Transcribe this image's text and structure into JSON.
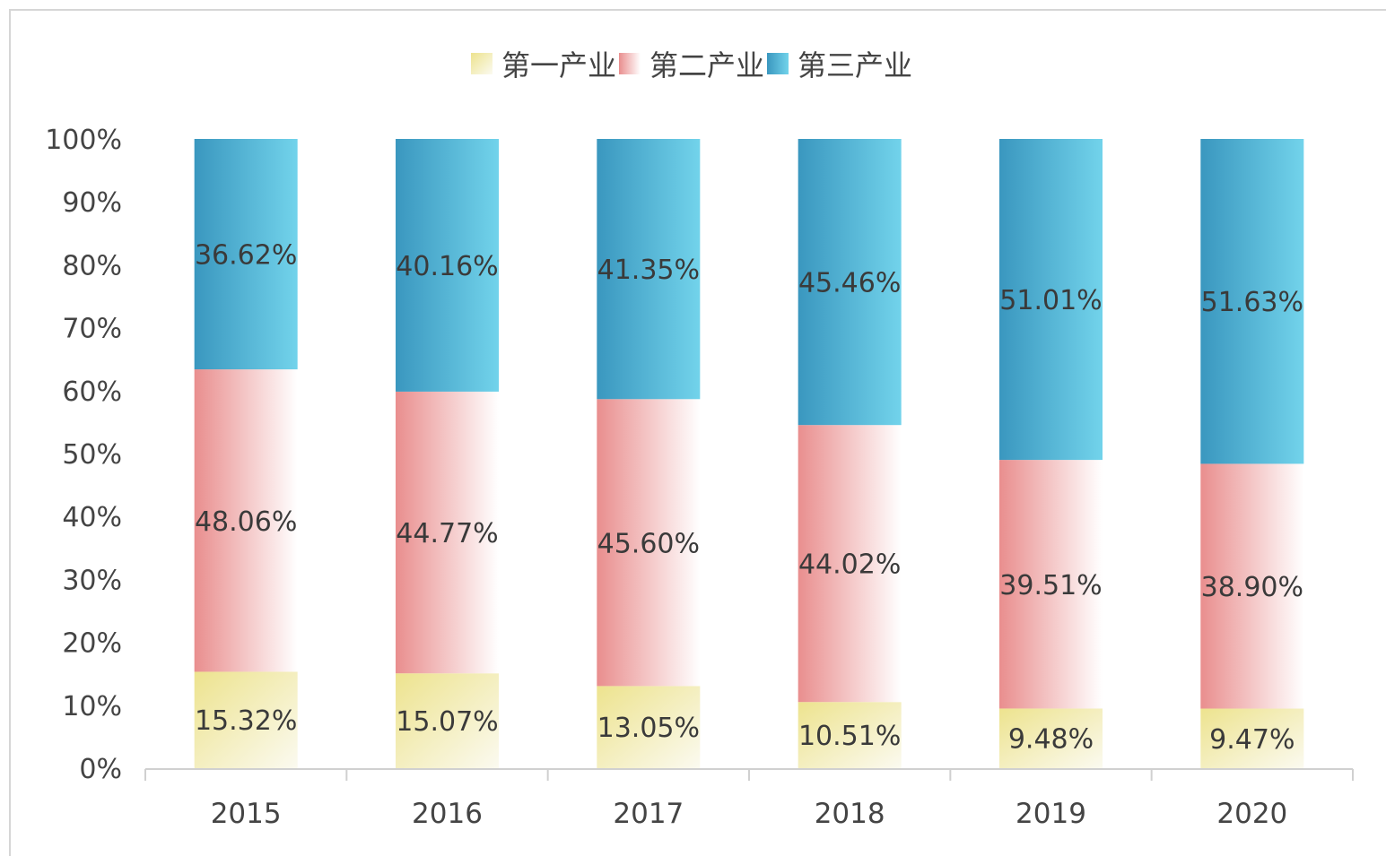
{
  "chart_data": {
    "type": "bar",
    "stacked": true,
    "percent_stacked": true,
    "categories": [
      "2015",
      "2016",
      "2017",
      "2018",
      "2019",
      "2020"
    ],
    "series": [
      {
        "name": "第一产业",
        "values": [
          15.32,
          15.07,
          13.05,
          10.51,
          9.48,
          9.47
        ],
        "labels": [
          "15.32%",
          "15.07%",
          "13.05%",
          "10.51%",
          "9.48%",
          "9.47%"
        ],
        "color": "#EDE38E",
        "color_light": "#FBFAF0"
      },
      {
        "name": "第二产业",
        "values": [
          48.06,
          44.77,
          45.6,
          44.02,
          39.51,
          38.9
        ],
        "labels": [
          "48.06%",
          "44.77%",
          "45.60%",
          "44.02%",
          "39.51%",
          "38.90%"
        ],
        "color": "#E98E8E",
        "color_light": "#FFFFFF"
      },
      {
        "name": "第三产业",
        "values": [
          36.62,
          40.16,
          41.35,
          45.46,
          51.01,
          51.63
        ],
        "labels": [
          "36.62%",
          "40.16%",
          "41.35%",
          "45.46%",
          "51.01%",
          "51.63%"
        ],
        "color": "#3A97BF",
        "color_light": "#72D3EB"
      }
    ],
    "yticks": [
      "0%",
      "10%",
      "20%",
      "30%",
      "40%",
      "50%",
      "60%",
      "70%",
      "80%",
      "90%",
      "100%"
    ],
    "ylim": [
      0,
      100
    ],
    "grid": false,
    "legend_position": "top-center",
    "title": "",
    "xlabel": "",
    "ylabel": ""
  }
}
